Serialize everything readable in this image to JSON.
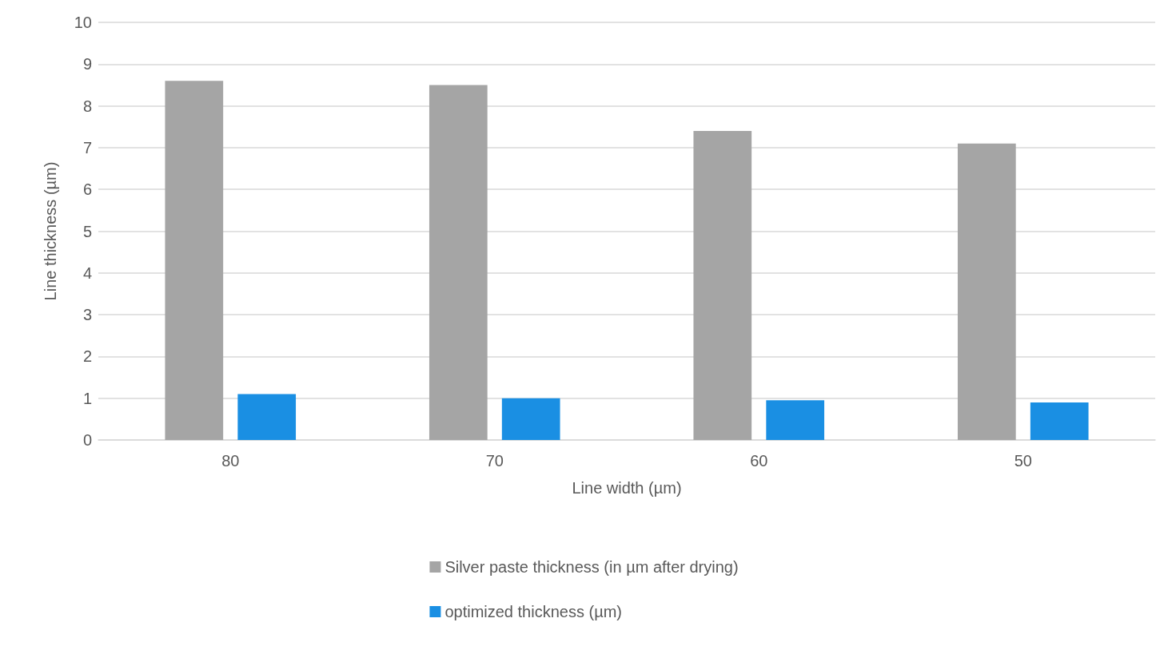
{
  "chart_data": {
    "type": "bar",
    "xlabel": "Line width (µm)",
    "ylabel": "Line thickness (µm)",
    "categories": [
      "80",
      "70",
      "60",
      "50"
    ],
    "series": [
      {
        "name": "Silver paste thickness (in µm after drying)",
        "color": "#a5a5a5",
        "values": [
          8.6,
          8.5,
          7.4,
          7.1
        ]
      },
      {
        "name": "optimized thickness (µm)",
        "color": "#1a8fe3",
        "values": [
          1.1,
          1.0,
          0.95,
          0.9
        ]
      }
    ],
    "ylim": [
      0,
      10
    ],
    "yticks": [
      0,
      1,
      2,
      3,
      4,
      5,
      6,
      7,
      8,
      9,
      10
    ],
    "grid": "y",
    "legend": "bottom"
  }
}
